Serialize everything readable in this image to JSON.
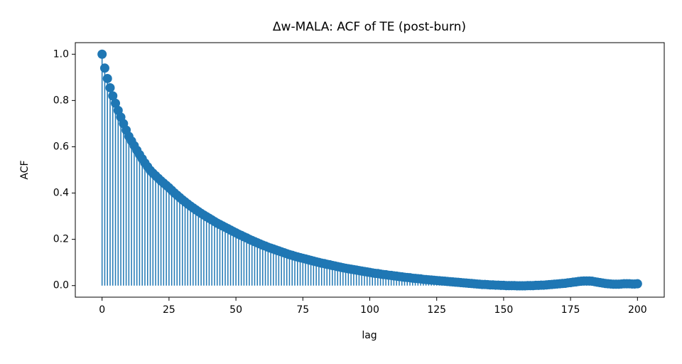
{
  "chart_data": {
    "type": "stem",
    "title": "Δw-MALA: ACF of TE (post-burn)",
    "xlabel": "lag",
    "ylabel": "ACF",
    "color": "#1f77b4",
    "x": [
      0,
      1,
      2,
      3,
      4,
      5,
      6,
      7,
      8,
      9,
      10,
      11,
      12,
      13,
      14,
      15,
      16,
      17,
      18,
      19,
      20,
      21,
      22,
      23,
      24,
      25,
      26,
      27,
      28,
      29,
      30,
      31,
      32,
      33,
      34,
      35,
      36,
      37,
      38,
      39,
      40,
      41,
      42,
      43,
      44,
      45,
      46,
      47,
      48,
      49,
      50,
      51,
      52,
      53,
      54,
      55,
      56,
      57,
      58,
      59,
      60,
      61,
      62,
      63,
      64,
      65,
      66,
      67,
      68,
      69,
      70,
      71,
      72,
      73,
      74,
      75,
      76,
      77,
      78,
      79,
      80,
      81,
      82,
      83,
      84,
      85,
      86,
      87,
      88,
      89,
      90,
      91,
      92,
      93,
      94,
      95,
      96,
      97,
      98,
      99,
      100,
      101,
      102,
      103,
      104,
      105,
      106,
      107,
      108,
      109,
      110,
      111,
      112,
      113,
      114,
      115,
      116,
      117,
      118,
      119,
      120,
      121,
      122,
      123,
      124,
      125,
      126,
      127,
      128,
      129,
      130,
      131,
      132,
      133,
      134,
      135,
      136,
      137,
      138,
      139,
      140,
      141,
      142,
      143,
      144,
      145,
      146,
      147,
      148,
      149,
      150,
      151,
      152,
      153,
      154,
      155,
      156,
      157,
      158,
      159,
      160,
      161,
      162,
      163,
      164,
      165,
      166,
      167,
      168,
      169,
      170,
      171,
      172,
      173,
      174,
      175,
      176,
      177,
      178,
      179,
      180,
      181,
      182,
      183,
      184,
      185,
      186,
      187,
      188,
      189,
      190,
      191,
      192,
      193,
      194,
      195,
      196,
      197,
      198,
      199,
      200
    ],
    "values": [
      1.0,
      0.94,
      0.895,
      0.855,
      0.82,
      0.788,
      0.757,
      0.728,
      0.7,
      0.672,
      0.645,
      0.625,
      0.605,
      0.585,
      0.566,
      0.548,
      0.53,
      0.514,
      0.498,
      0.486,
      0.475,
      0.464,
      0.453,
      0.443,
      0.433,
      0.423,
      0.412,
      0.401,
      0.391,
      0.381,
      0.371,
      0.362,
      0.353,
      0.344,
      0.336,
      0.328,
      0.32,
      0.312,
      0.305,
      0.298,
      0.291,
      0.284,
      0.277,
      0.27,
      0.264,
      0.258,
      0.252,
      0.246,
      0.24,
      0.234,
      0.228,
      0.222,
      0.217,
      0.211,
      0.206,
      0.2,
      0.195,
      0.19,
      0.185,
      0.18,
      0.175,
      0.171,
      0.166,
      0.162,
      0.158,
      0.154,
      0.15,
      0.146,
      0.142,
      0.138,
      0.134,
      0.131,
      0.127,
      0.124,
      0.121,
      0.118,
      0.115,
      0.112,
      0.109,
      0.106,
      0.103,
      0.1,
      0.097,
      0.095,
      0.092,
      0.09,
      0.087,
      0.085,
      0.082,
      0.08,
      0.077,
      0.075,
      0.073,
      0.071,
      0.069,
      0.067,
      0.065,
      0.063,
      0.061,
      0.059,
      0.057,
      0.055,
      0.053,
      0.052,
      0.05,
      0.048,
      0.047,
      0.045,
      0.044,
      0.042,
      0.041,
      0.039,
      0.038,
      0.036,
      0.035,
      0.034,
      0.032,
      0.031,
      0.03,
      0.029,
      0.027,
      0.026,
      0.025,
      0.024,
      0.023,
      0.022,
      0.021,
      0.02,
      0.019,
      0.018,
      0.017,
      0.016,
      0.015,
      0.014,
      0.013,
      0.012,
      0.011,
      0.01,
      0.009,
      0.008,
      0.007,
      0.006,
      0.005,
      0.005,
      0.004,
      0.003,
      0.003,
      0.002,
      0.002,
      0.001,
      0.001,
      0.0,
      0.0,
      0.0,
      0.0,
      -0.001,
      -0.001,
      -0.001,
      -0.001,
      0.0,
      0.0,
      0.0,
      0.001,
      0.001,
      0.002,
      0.002,
      0.003,
      0.004,
      0.005,
      0.006,
      0.007,
      0.008,
      0.009,
      0.01,
      0.012,
      0.013,
      0.015,
      0.016,
      0.018,
      0.019,
      0.02,
      0.02,
      0.02,
      0.019,
      0.017,
      0.015,
      0.013,
      0.011,
      0.009,
      0.008,
      0.007,
      0.006,
      0.006,
      0.006,
      0.007,
      0.008,
      0.008,
      0.008,
      0.007,
      0.007,
      0.008
    ],
    "xlim": [
      -10,
      210
    ],
    "xticks": [
      0,
      25,
      50,
      75,
      100,
      125,
      150,
      175,
      200
    ],
    "ylim": [
      -0.05,
      1.05
    ],
    "yticks": [
      {
        "value": 0,
        "label": "0.0"
      },
      0.2,
      0.4,
      0.6,
      0.8,
      {
        "value": 1,
        "label": "1.0"
      }
    ]
  }
}
